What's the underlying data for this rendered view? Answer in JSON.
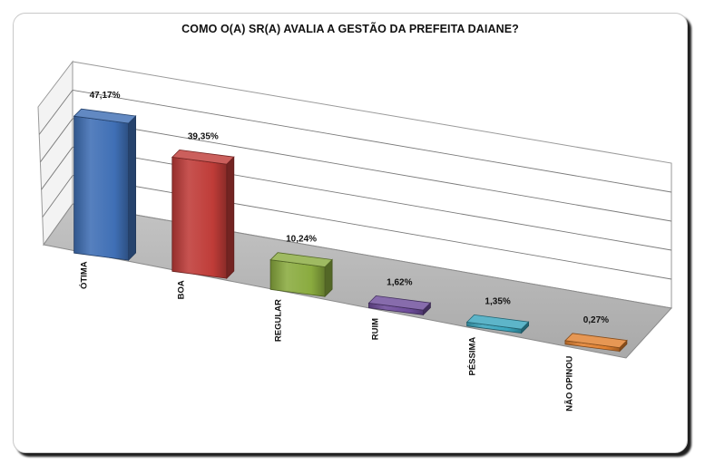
{
  "chart_data": {
    "type": "bar",
    "title": "COMO O(A) SR(A) AVALIA A GESTÃO DA PREFEITA DAIANE?",
    "categories": [
      "ÓTIMA",
      "BOA",
      "REGULAR",
      "RUIM",
      "PÉSSIMA",
      "NÃO OPINOU"
    ],
    "values": [
      47.17,
      39.35,
      10.24,
      1.62,
      1.35,
      0.27
    ],
    "data_labels": [
      "47,17%",
      "39,35%",
      "10,24%",
      "1,62%",
      "1,35%",
      "0,27%"
    ],
    "colors": [
      "#3f6fb5",
      "#bf3c38",
      "#8aab3f",
      "#6d4c9a",
      "#3aa5bd",
      "#e0802f"
    ],
    "ylim": [
      0,
      50
    ],
    "xlabel": "",
    "ylabel": "",
    "grid": true,
    "style": "3d-perspective-column",
    "legend": "none"
  }
}
